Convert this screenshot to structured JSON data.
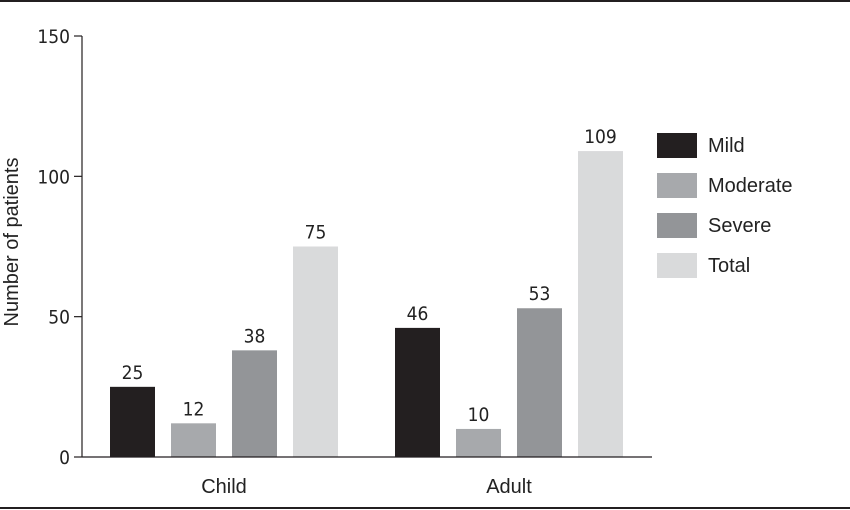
{
  "chart_data": {
    "type": "bar",
    "categories": [
      "Child",
      "Adult"
    ],
    "series": [
      {
        "name": "Mild",
        "values": [
          25,
          46
        ],
        "color": "#231f20"
      },
      {
        "name": "Moderate",
        "values": [
          12,
          10
        ],
        "color": "#a7a9ac"
      },
      {
        "name": "Severe",
        "values": [
          38,
          53
        ],
        "color": "#939598"
      },
      {
        "name": "Total",
        "values": [
          75,
          109
        ],
        "color": "#d9dadb"
      }
    ],
    "data_labels": [
      [
        "25",
        "46"
      ],
      [
        "12",
        "10"
      ],
      [
        "38",
        "53"
      ],
      [
        "75",
        "109"
      ]
    ],
    "ylabel": "Number of patients",
    "xlabel": "",
    "ylim": [
      0,
      150
    ],
    "yticks": [
      0,
      50,
      100,
      150
    ],
    "ytick_labels": [
      "0",
      "50",
      "100",
      "150"
    ],
    "grid": false,
    "legend_position": "right"
  }
}
